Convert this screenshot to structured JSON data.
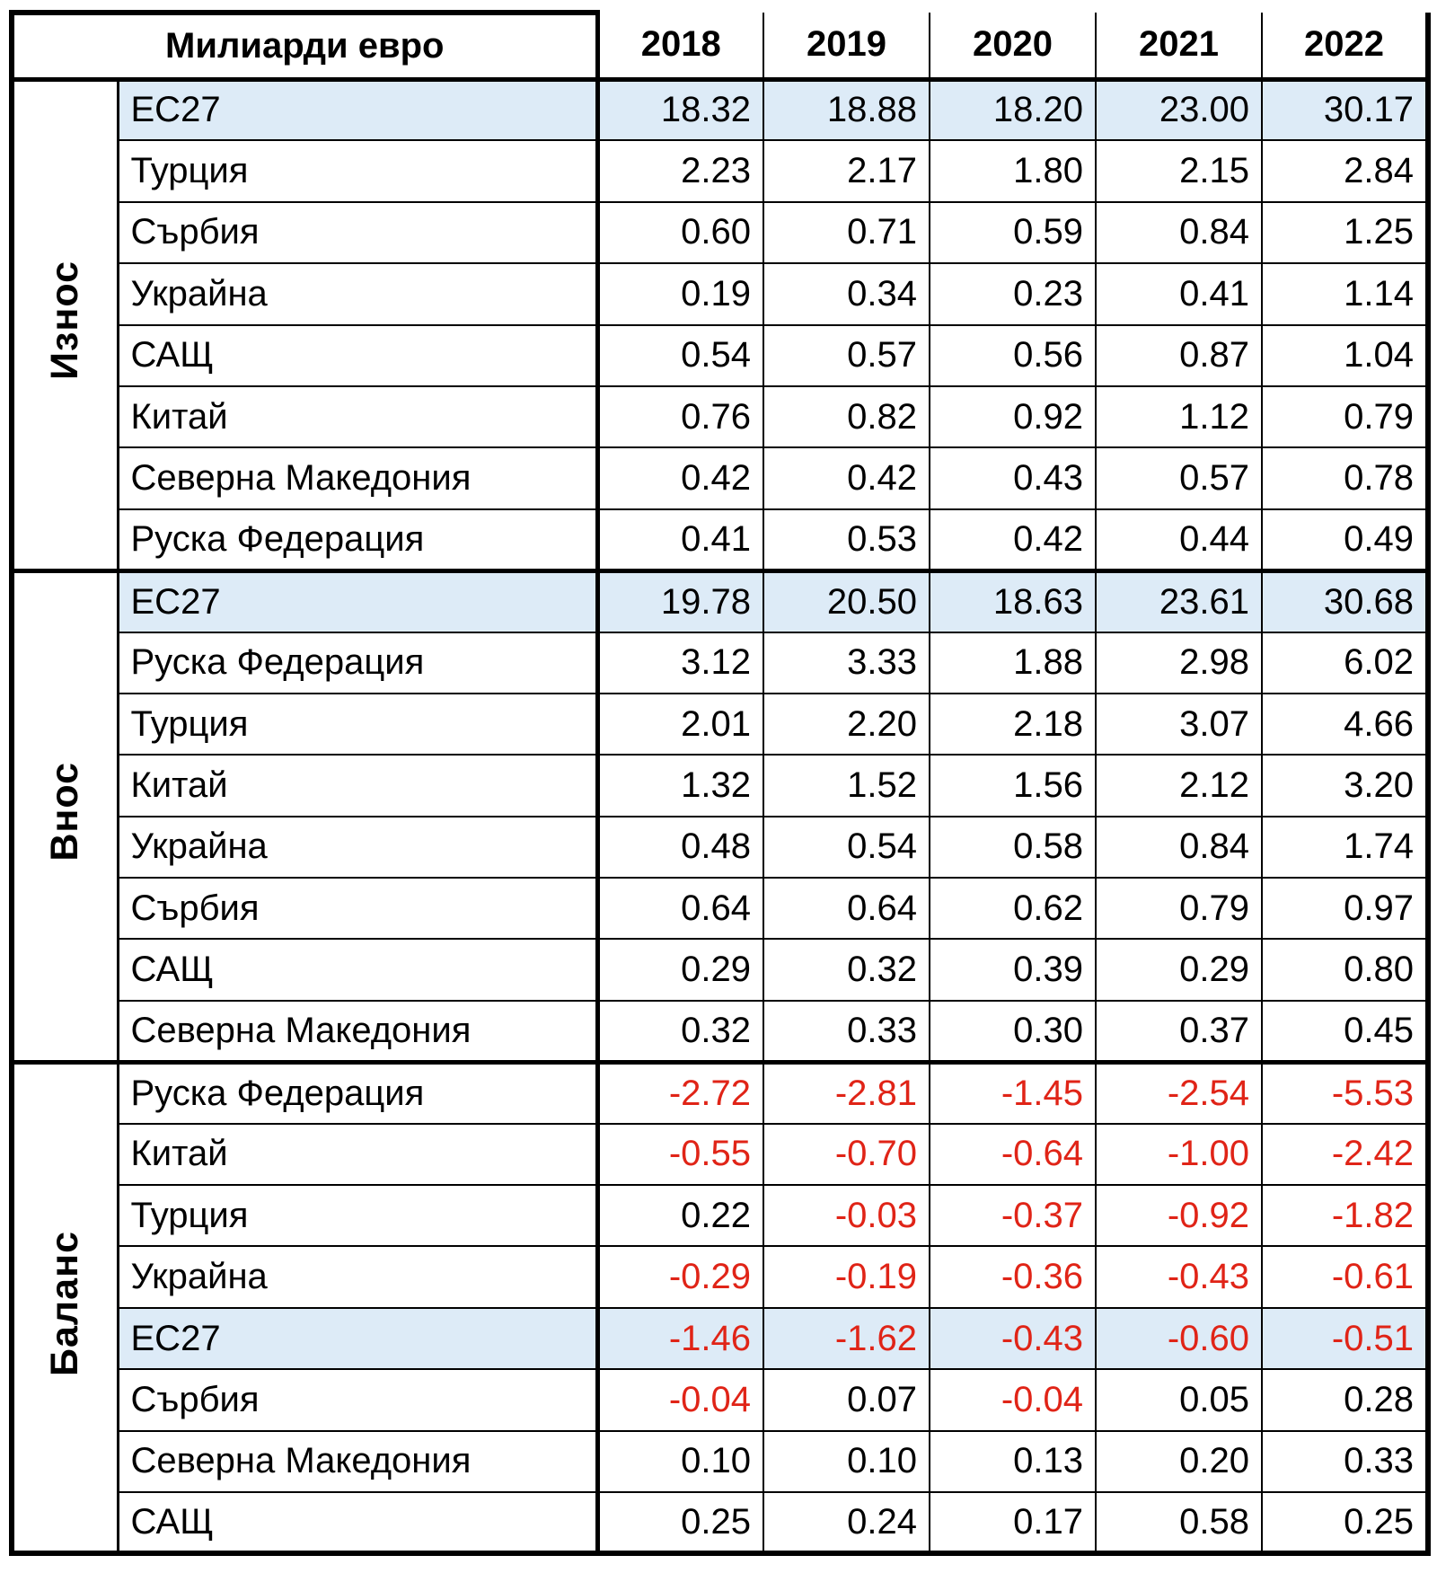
{
  "table": {
    "unit_header": "Милиарди евро",
    "years": [
      "2018",
      "2019",
      "2020",
      "2021",
      "2022"
    ],
    "highlight_color": "#DDEBF7",
    "negative_value_color": "#E02417",
    "sections": [
      {
        "label": "Износ",
        "rows": [
          {
            "label": "ЕС27",
            "highlight": true,
            "values": [
              "18.32",
              "18.88",
              "18.20",
              "23.00",
              "30.17"
            ]
          },
          {
            "label": "Турция",
            "highlight": false,
            "values": [
              "2.23",
              "2.17",
              "1.80",
              "2.15",
              "2.84"
            ]
          },
          {
            "label": "Сърбия",
            "highlight": false,
            "values": [
              "0.60",
              "0.71",
              "0.59",
              "0.84",
              "1.25"
            ]
          },
          {
            "label": "Украйна",
            "highlight": false,
            "values": [
              "0.19",
              "0.34",
              "0.23",
              "0.41",
              "1.14"
            ]
          },
          {
            "label": "САЩ",
            "highlight": false,
            "values": [
              "0.54",
              "0.57",
              "0.56",
              "0.87",
              "1.04"
            ]
          },
          {
            "label": "Китай",
            "highlight": false,
            "values": [
              "0.76",
              "0.82",
              "0.92",
              "1.12",
              "0.79"
            ]
          },
          {
            "label": "Северна Македония",
            "highlight": false,
            "values": [
              "0.42",
              "0.42",
              "0.43",
              "0.57",
              "0.78"
            ]
          },
          {
            "label": "Руска Федерация",
            "highlight": false,
            "values": [
              "0.41",
              "0.53",
              "0.42",
              "0.44",
              "0.49"
            ]
          }
        ]
      },
      {
        "label": "Внос",
        "rows": [
          {
            "label": "ЕС27",
            "highlight": true,
            "values": [
              "19.78",
              "20.50",
              "18.63",
              "23.61",
              "30.68"
            ]
          },
          {
            "label": "Руска Федерация",
            "highlight": false,
            "values": [
              "3.12",
              "3.33",
              "1.88",
              "2.98",
              "6.02"
            ]
          },
          {
            "label": "Турция",
            "highlight": false,
            "values": [
              "2.01",
              "2.20",
              "2.18",
              "3.07",
              "4.66"
            ]
          },
          {
            "label": "Китай",
            "highlight": false,
            "values": [
              "1.32",
              "1.52",
              "1.56",
              "2.12",
              "3.20"
            ]
          },
          {
            "label": "Украйна",
            "highlight": false,
            "values": [
              "0.48",
              "0.54",
              "0.58",
              "0.84",
              "1.74"
            ]
          },
          {
            "label": "Сърбия",
            "highlight": false,
            "values": [
              "0.64",
              "0.64",
              "0.62",
              "0.79",
              "0.97"
            ]
          },
          {
            "label": "САЩ",
            "highlight": false,
            "values": [
              "0.29",
              "0.32",
              "0.39",
              "0.29",
              "0.80"
            ]
          },
          {
            "label": "Северна Македония",
            "highlight": false,
            "values": [
              "0.32",
              "0.33",
              "0.30",
              "0.37",
              "0.45"
            ]
          }
        ]
      },
      {
        "label": "Баланс",
        "rows": [
          {
            "label": "Руска Федерация",
            "highlight": false,
            "values": [
              "-2.72",
              "-2.81",
              "-1.45",
              "-2.54",
              "-5.53"
            ]
          },
          {
            "label": "Китай",
            "highlight": false,
            "values": [
              "-0.55",
              "-0.70",
              "-0.64",
              "-1.00",
              "-2.42"
            ]
          },
          {
            "label": "Турция",
            "highlight": false,
            "values": [
              "0.22",
              "-0.03",
              "-0.37",
              "-0.92",
              "-1.82"
            ]
          },
          {
            "label": "Украйна",
            "highlight": false,
            "values": [
              "-0.29",
              "-0.19",
              "-0.36",
              "-0.43",
              "-0.61"
            ]
          },
          {
            "label": "ЕС27",
            "highlight": true,
            "values": [
              "-1.46",
              "-1.62",
              "-0.43",
              "-0.60",
              "-0.51"
            ]
          },
          {
            "label": "Сърбия",
            "highlight": false,
            "values": [
              "-0.04",
              "0.07",
              "-0.04",
              "0.05",
              "0.28"
            ]
          },
          {
            "label": "Северна Македония",
            "highlight": false,
            "values": [
              "0.10",
              "0.10",
              "0.13",
              "0.20",
              "0.33"
            ]
          },
          {
            "label": "САЩ",
            "highlight": false,
            "values": [
              "0.25",
              "0.24",
              "0.17",
              "0.58",
              "0.25"
            ]
          }
        ]
      }
    ]
  },
  "chart_data": {
    "type": "table",
    "title": "Милиарди евро",
    "columns": [
      "2018",
      "2019",
      "2020",
      "2021",
      "2022"
    ],
    "sections": [
      {
        "name": "Износ",
        "rows": [
          {
            "partner": "ЕС27",
            "values": [
              18.32,
              18.88,
              18.2,
              23.0,
              30.17
            ]
          },
          {
            "partner": "Турция",
            "values": [
              2.23,
              2.17,
              1.8,
              2.15,
              2.84
            ]
          },
          {
            "partner": "Сърбия",
            "values": [
              0.6,
              0.71,
              0.59,
              0.84,
              1.25
            ]
          },
          {
            "partner": "Украйна",
            "values": [
              0.19,
              0.34,
              0.23,
              0.41,
              1.14
            ]
          },
          {
            "partner": "САЩ",
            "values": [
              0.54,
              0.57,
              0.56,
              0.87,
              1.04
            ]
          },
          {
            "partner": "Китай",
            "values": [
              0.76,
              0.82,
              0.92,
              1.12,
              0.79
            ]
          },
          {
            "partner": "Северна Македония",
            "values": [
              0.42,
              0.42,
              0.43,
              0.57,
              0.78
            ]
          },
          {
            "partner": "Руска Федерация",
            "values": [
              0.41,
              0.53,
              0.42,
              0.44,
              0.49
            ]
          }
        ]
      },
      {
        "name": "Внос",
        "rows": [
          {
            "partner": "ЕС27",
            "values": [
              19.78,
              20.5,
              18.63,
              23.61,
              30.68
            ]
          },
          {
            "partner": "Руска Федерация",
            "values": [
              3.12,
              3.33,
              1.88,
              2.98,
              6.02
            ]
          },
          {
            "partner": "Турция",
            "values": [
              2.01,
              2.2,
              2.18,
              3.07,
              4.66
            ]
          },
          {
            "partner": "Китай",
            "values": [
              1.32,
              1.52,
              1.56,
              2.12,
              3.2
            ]
          },
          {
            "partner": "Украйна",
            "values": [
              0.48,
              0.54,
              0.58,
              0.84,
              1.74
            ]
          },
          {
            "partner": "Сърбия",
            "values": [
              0.64,
              0.64,
              0.62,
              0.79,
              0.97
            ]
          },
          {
            "partner": "САЩ",
            "values": [
              0.29,
              0.32,
              0.39,
              0.29,
              0.8
            ]
          },
          {
            "partner": "Северна Македония",
            "values": [
              0.32,
              0.33,
              0.3,
              0.37,
              0.45
            ]
          }
        ]
      },
      {
        "name": "Баланс",
        "rows": [
          {
            "partner": "Руска Федерация",
            "values": [
              -2.72,
              -2.81,
              -1.45,
              -2.54,
              -5.53
            ]
          },
          {
            "partner": "Китай",
            "values": [
              -0.55,
              -0.7,
              -0.64,
              -1.0,
              -2.42
            ]
          },
          {
            "partner": "Турция",
            "values": [
              0.22,
              -0.03,
              -0.37,
              -0.92,
              -1.82
            ]
          },
          {
            "partner": "Украйна",
            "values": [
              -0.29,
              -0.19,
              -0.36,
              -0.43,
              -0.61
            ]
          },
          {
            "partner": "ЕС27",
            "values": [
              -1.46,
              -1.62,
              -0.43,
              -0.6,
              -0.51
            ]
          },
          {
            "partner": "Сърбия",
            "values": [
              -0.04,
              0.07,
              -0.04,
              0.05,
              0.28
            ]
          },
          {
            "partner": "Северна Македония",
            "values": [
              0.1,
              0.1,
              0.13,
              0.2,
              0.33
            ]
          },
          {
            "partner": "САЩ",
            "values": [
              0.25,
              0.24,
              0.17,
              0.58,
              0.25
            ]
          }
        ]
      }
    ]
  }
}
